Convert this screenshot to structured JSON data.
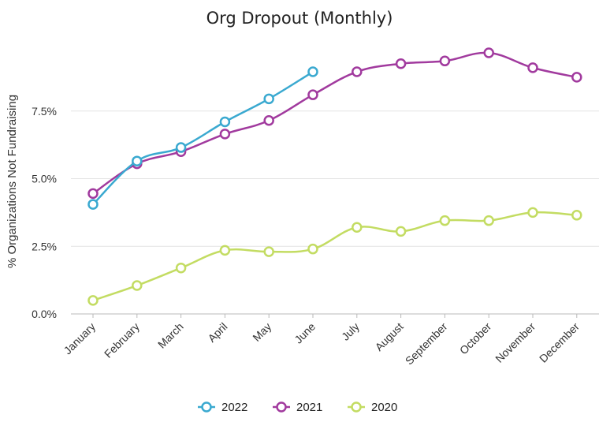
{
  "chart_data": {
    "type": "line",
    "title": "Org Dropout (Monthly)",
    "xlabel": "",
    "ylabel": "% Organizations Not Fundraising",
    "categories": [
      "January",
      "February",
      "March",
      "April",
      "May",
      "June",
      "July",
      "August",
      "September",
      "October",
      "November",
      "December"
    ],
    "y_ticks": [
      "0.0%",
      "2.5%",
      "5.0%",
      "7.5%"
    ],
    "ylim": [
      0,
      10
    ],
    "grid": "horizontal",
    "legend_position": "bottom",
    "series": [
      {
        "name": "2022",
        "color": "#3aa9d0",
        "values": [
          4.05,
          5.65,
          6.15,
          7.1,
          7.95,
          8.95,
          null,
          null,
          null,
          null,
          null,
          null
        ]
      },
      {
        "name": "2021",
        "color": "#a13a9e",
        "values": [
          4.45,
          5.55,
          6.0,
          6.65,
          7.15,
          8.1,
          8.95,
          9.25,
          9.35,
          9.65,
          9.1,
          8.75
        ]
      },
      {
        "name": "2020",
        "color": "#c3dc62",
        "values": [
          0.5,
          1.05,
          1.7,
          2.35,
          2.3,
          2.4,
          3.2,
          3.05,
          3.45,
          3.45,
          3.75,
          3.65
        ]
      }
    ]
  }
}
